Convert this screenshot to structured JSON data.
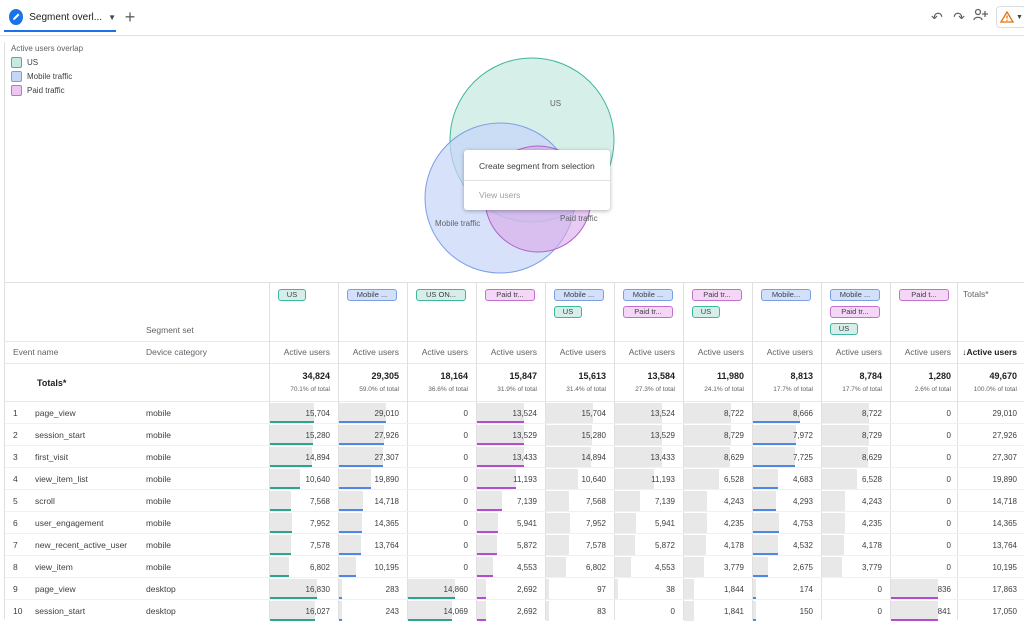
{
  "tab": {
    "label": "Segment overl...",
    "icon": "pencil-icon"
  },
  "toolbar": {
    "icons": [
      "undo-icon",
      "redo-icon",
      "share-users-icon",
      "warning-icon"
    ]
  },
  "overlap": {
    "title": "Active users overlap",
    "legend": [
      {
        "label": "US",
        "color": "#c8e9e2",
        "border": "#3fb6a0"
      },
      {
        "label": "Mobile traffic",
        "color": "#c6d6f8",
        "border": "#7a9fe6"
      },
      {
        "label": "Paid traffic",
        "color": "#efc6f3",
        "border": "#c270d0"
      }
    ],
    "venn_labels": {
      "us": "US",
      "mobile": "Mobile traffic",
      "paid": "Paid traffic"
    }
  },
  "context_menu": {
    "create": "Create segment from selection",
    "view": "View users"
  },
  "table": {
    "segment_set_label": "Segment set",
    "event_name_label": "Event name",
    "device_category_label": "Device category",
    "totals_label": "Totals*",
    "totals_header": "Totals*",
    "metric_label": "Active users",
    "sorted_metric_label": "↓Active users",
    "columns": [
      {
        "chips": [
          {
            "t": "US",
            "k": "us"
          }
        ],
        "total": "34,824",
        "pct": "70.1% of total"
      },
      {
        "chips": [
          {
            "t": "Mobile ...",
            "k": "mob"
          }
        ],
        "total": "29,305",
        "pct": "59.0% of total"
      },
      {
        "chips": [
          {
            "t": "US ON...",
            "k": "us"
          }
        ],
        "total": "18,164",
        "pct": "36.6% of total"
      },
      {
        "chips": [
          {
            "t": "Paid tr...",
            "k": "paid"
          }
        ],
        "total": "15,847",
        "pct": "31.9% of total"
      },
      {
        "chips": [
          {
            "t": "Mobile ...",
            "k": "mob"
          },
          {
            "t": "US",
            "k": "us"
          }
        ],
        "total": "15,613",
        "pct": "31.4% of total"
      },
      {
        "chips": [
          {
            "t": "Mobile ...",
            "k": "mob"
          },
          {
            "t": "Paid tr...",
            "k": "paid"
          }
        ],
        "total": "13,584",
        "pct": "27.3% of total"
      },
      {
        "chips": [
          {
            "t": "Paid tr...",
            "k": "paid"
          },
          {
            "t": "US",
            "k": "us"
          }
        ],
        "total": "11,980",
        "pct": "24.1% of total"
      },
      {
        "chips": [
          {
            "t": "Mobile...",
            "k": "mob"
          }
        ],
        "total": "8,813",
        "pct": "17.7% of total"
      },
      {
        "chips": [
          {
            "t": "Mobile ...",
            "k": "mob"
          },
          {
            "t": "Paid tr...",
            "k": "paid"
          },
          {
            "t": "US",
            "k": "us"
          }
        ],
        "total": "8,784",
        "pct": "17.7% of total"
      },
      {
        "chips": [
          {
            "t": "Paid t...",
            "k": "paid"
          }
        ],
        "total": "1,280",
        "pct": "2.6% of total"
      },
      {
        "chips": [],
        "total": "49,670",
        "pct": "100.0% of total"
      }
    ],
    "rows": [
      {
        "n": "1",
        "event": "page_view",
        "device": "mobile",
        "v": [
          "15,704",
          "29,010",
          "0",
          "13,524",
          "15,704",
          "13,524",
          "8,722",
          "8,666",
          "8,722",
          "0",
          "29,010"
        ]
      },
      {
        "n": "2",
        "event": "session_start",
        "device": "mobile",
        "v": [
          "15,280",
          "27,926",
          "0",
          "13,529",
          "15,280",
          "13,529",
          "8,729",
          "7,972",
          "8,729",
          "0",
          "27,926"
        ]
      },
      {
        "n": "3",
        "event": "first_visit",
        "device": "mobile",
        "v": [
          "14,894",
          "27,307",
          "0",
          "13,433",
          "14,894",
          "13,433",
          "8,629",
          "7,725",
          "8,629",
          "0",
          "27,307"
        ]
      },
      {
        "n": "4",
        "event": "view_item_list",
        "device": "mobile",
        "v": [
          "10,640",
          "19,890",
          "0",
          "11,193",
          "10,640",
          "11,193",
          "6,528",
          "4,683",
          "6,528",
          "0",
          "19,890"
        ]
      },
      {
        "n": "5",
        "event": "scroll",
        "device": "mobile",
        "v": [
          "7,568",
          "14,718",
          "0",
          "7,139",
          "7,568",
          "7,139",
          "4,243",
          "4,293",
          "4,243",
          "0",
          "14,718"
        ]
      },
      {
        "n": "6",
        "event": "user_engagement",
        "device": "mobile",
        "v": [
          "7,952",
          "14,365",
          "0",
          "5,941",
          "7,952",
          "5,941",
          "4,235",
          "4,753",
          "4,235",
          "0",
          "14,365"
        ]
      },
      {
        "n": "7",
        "event": "new_recent_active_user",
        "device": "mobile",
        "v": [
          "7,578",
          "13,764",
          "0",
          "5,872",
          "7,578",
          "5,872",
          "4,178",
          "4,532",
          "4,178",
          "0",
          "13,764"
        ]
      },
      {
        "n": "8",
        "event": "view_item",
        "device": "mobile",
        "v": [
          "6,802",
          "10,195",
          "0",
          "4,553",
          "6,802",
          "4,553",
          "3,779",
          "2,675",
          "3,779",
          "0",
          "10,195"
        ]
      },
      {
        "n": "9",
        "event": "page_view",
        "device": "desktop",
        "v": [
          "16,830",
          "283",
          "14,860",
          "2,692",
          "97",
          "38",
          "1,844",
          "174",
          "0",
          "836",
          "17,863"
        ]
      },
      {
        "n": "10",
        "event": "session_start",
        "device": "desktop",
        "v": [
          "16,027",
          "243",
          "14,069",
          "2,692",
          "83",
          "0",
          "1,841",
          "150",
          "0",
          "841",
          "17,050"
        ]
      }
    ]
  }
}
